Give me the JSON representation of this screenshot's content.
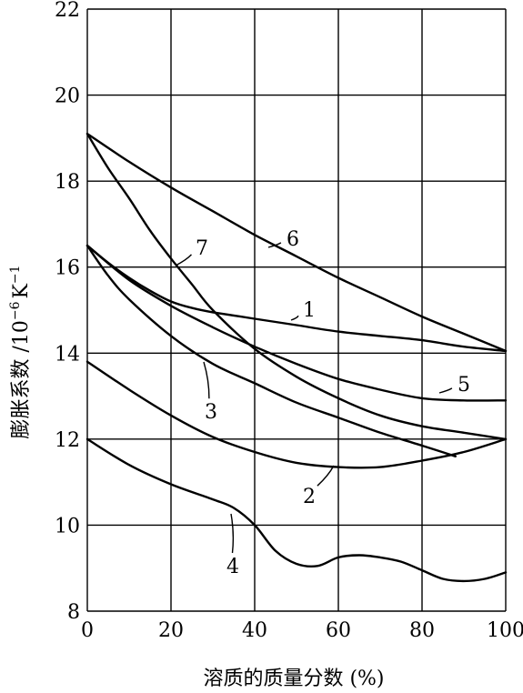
{
  "chart_data": {
    "type": "line",
    "xlabel": "溶质的质量分数 (%)",
    "ylabel_main": "膨胀系数 /10",
    "ylabel_exp1": "−6",
    "ylabel_unit": "K",
    "ylabel_exp2": "−1",
    "xlim": [
      0,
      100
    ],
    "ylim": [
      8,
      22
    ],
    "x_ticks": [
      0,
      20,
      40,
      60,
      80,
      100
    ],
    "y_ticks": [
      8,
      10,
      12,
      14,
      16,
      18,
      20,
      22
    ],
    "grid": true,
    "series": [
      {
        "name": "1",
        "x": [
          0,
          5,
          10,
          15,
          20,
          25,
          30,
          40,
          50,
          60,
          70,
          80,
          90,
          100
        ],
        "y": [
          16.5,
          16.1,
          15.75,
          15.45,
          15.2,
          15.05,
          14.95,
          14.8,
          14.65,
          14.5,
          14.4,
          14.3,
          14.15,
          14.05
        ]
      },
      {
        "name": "2",
        "x": [
          0,
          10,
          20,
          30,
          40,
          50,
          60,
          70,
          80,
          90,
          100
        ],
        "y": [
          13.8,
          13.15,
          12.55,
          12.05,
          11.7,
          11.45,
          11.35,
          11.35,
          11.5,
          11.7,
          12.0
        ]
      },
      {
        "name": "3",
        "x": [
          0,
          5,
          10,
          20,
          30,
          40,
          50,
          60,
          70,
          80,
          88
        ],
        "y": [
          16.5,
          15.8,
          15.25,
          14.4,
          13.75,
          13.3,
          12.85,
          12.5,
          12.15,
          11.85,
          11.6
        ]
      },
      {
        "name": "4",
        "x": [
          0,
          10,
          20,
          30,
          35,
          40,
          45,
          50,
          55,
          60,
          65,
          70,
          75,
          80,
          85,
          90,
          95,
          100
        ],
        "y": [
          12.0,
          11.4,
          10.95,
          10.6,
          10.4,
          10.0,
          9.4,
          9.1,
          9.05,
          9.25,
          9.3,
          9.25,
          9.15,
          8.95,
          8.75,
          8.7,
          8.75,
          8.9
        ]
      },
      {
        "name": "5",
        "x": [
          0,
          10,
          20,
          30,
          40,
          50,
          60,
          70,
          80,
          90,
          100
        ],
        "y": [
          16.5,
          15.7,
          15.1,
          14.6,
          14.15,
          13.75,
          13.4,
          13.15,
          12.95,
          12.9,
          12.9
        ]
      },
      {
        "name": "6",
        "x": [
          0,
          10,
          20,
          30,
          40,
          50,
          60,
          70,
          80,
          90,
          100
        ],
        "y": [
          19.1,
          18.45,
          17.85,
          17.3,
          16.75,
          16.25,
          15.75,
          15.3,
          14.85,
          14.45,
          14.05
        ]
      },
      {
        "name": "7",
        "x": [
          0,
          5,
          10,
          15,
          20,
          25,
          30,
          40,
          50,
          60,
          70,
          80,
          90,
          100
        ],
        "y": [
          19.1,
          18.3,
          17.6,
          16.85,
          16.2,
          15.6,
          15.0,
          14.1,
          13.45,
          12.95,
          12.55,
          12.3,
          12.15,
          12.0
        ]
      }
    ]
  }
}
